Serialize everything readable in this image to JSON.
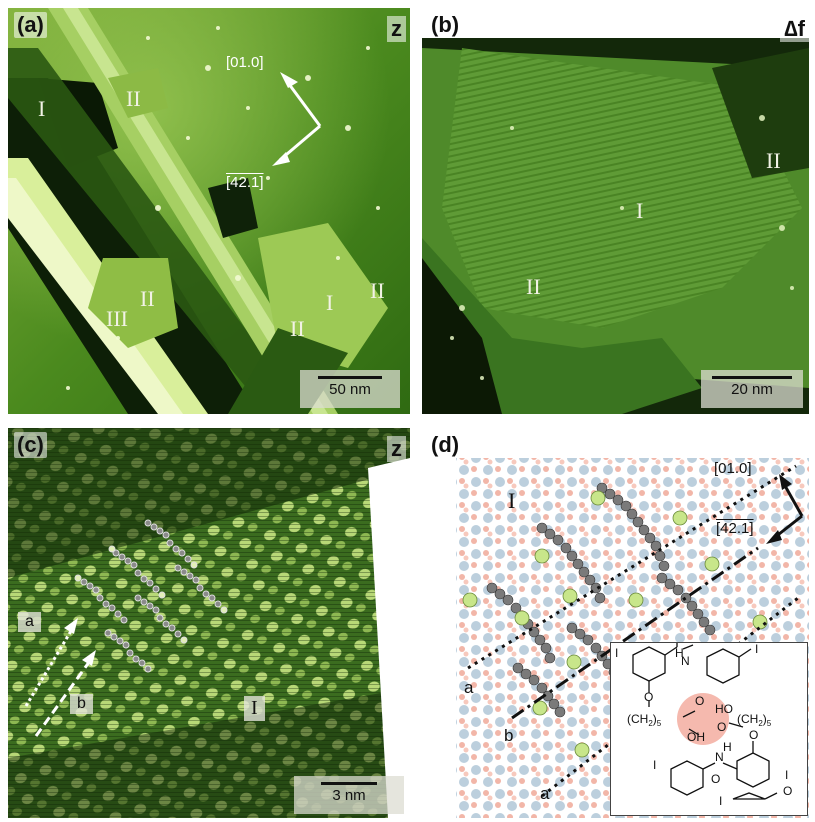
{
  "panels": {
    "a": {
      "label": "(a)",
      "channel": "z",
      "scale_bar": "50 nm",
      "regions": [
        "I",
        "II",
        "II",
        "III",
        "I",
        "II",
        "II"
      ],
      "direction_up": "[01.0]",
      "direction_down": "[42.1]"
    },
    "b": {
      "label": "(b)",
      "channel": "∆f",
      "scale_bar": "20 nm",
      "regions": [
        "II",
        "I",
        "II"
      ]
    },
    "c": {
      "label": "(c)",
      "channel": "z",
      "scale_bar": "3 nm",
      "row_labels": [
        "a",
        "b"
      ],
      "region": "I"
    },
    "d": {
      "label": "(d)",
      "region": "I",
      "direction_up": "[01.0]",
      "direction_down": "[42.1]",
      "row_labels": [
        "a",
        "b",
        "a"
      ],
      "inset": {
        "iodine_1": "I",
        "amide_h_1": "H",
        "amide_n_1": "N",
        "carbonyl_o_1": "O",
        "iodine_2": "I",
        "ether_o_1": "O",
        "chain_1": "(CH",
        "chain_1_sub": "2",
        "chain_1_close": ")",
        "chain_1_count": "5",
        "acid_ho_left": "HO",
        "acid_o_left": "O",
        "acid_oh_left": "OH",
        "acid_o_right": "O",
        "chain_2": "(CH",
        "chain_2_sub": "2",
        "chain_2_close": ")",
        "chain_2_count": "5",
        "iodine_3": "I",
        "ether_o_2": "O",
        "amide_n_2": "N",
        "amide_h_2": "H",
        "carbonyl_o_2": "O",
        "iodine_4": "I",
        "iodine_5": "I",
        "carbonyl_o_3": "O"
      }
    }
  },
  "colors": {
    "stm_dark": "#0c1a06",
    "stm_mid": "#3f7a1c",
    "stm_bright": "#d8ef9a",
    "oxygen": "#f0a090",
    "substrate": "#a9c3d6",
    "iodine": "#c8e68a",
    "carbon": "#7a7a7a",
    "highlight": "#f08070"
  }
}
